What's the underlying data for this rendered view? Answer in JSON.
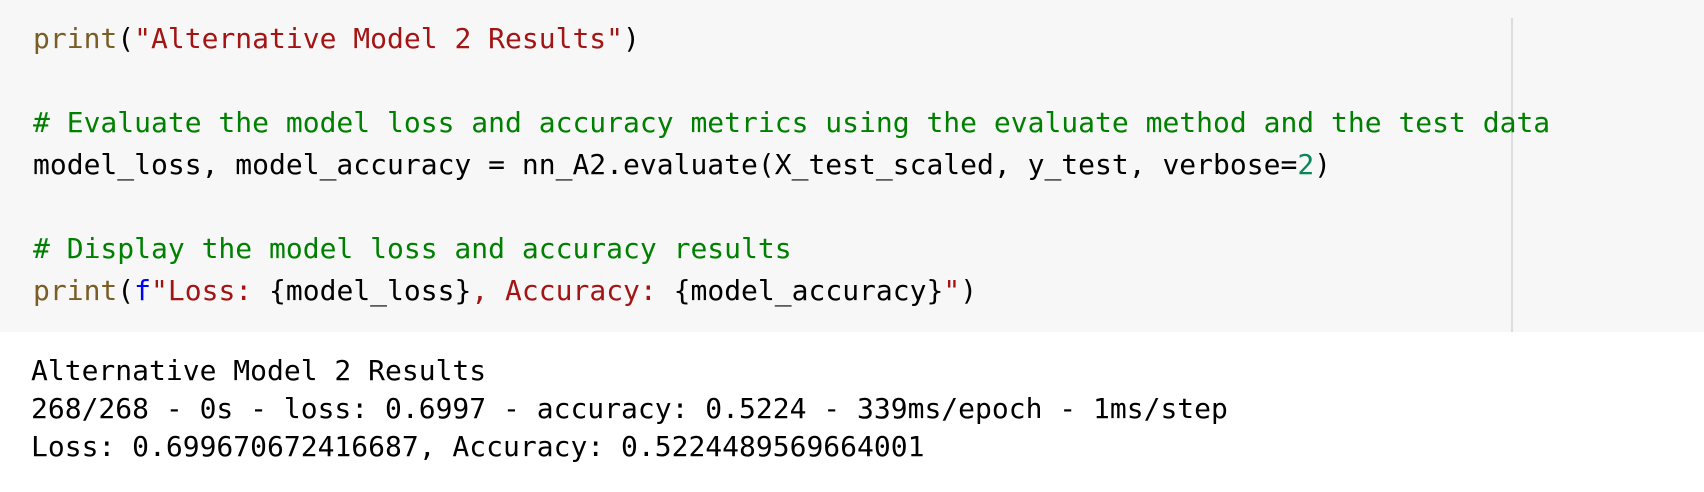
{
  "code_cell": {
    "lines": [
      [
        {
          "t": "fn",
          "v": "print"
        },
        {
          "t": "plain",
          "v": "("
        },
        {
          "t": "str",
          "v": "\"Alternative Model 2 Results\""
        },
        {
          "t": "plain",
          "v": ")"
        }
      ],
      [],
      [
        {
          "t": "cmt",
          "v": "# Evaluate the model loss and accuracy metrics using the evaluate method and the test data"
        }
      ],
      [
        {
          "t": "plain",
          "v": "model_loss, model_accuracy = nn_A2.evaluate(X_test_scaled, y_test, verbose="
        },
        {
          "t": "num",
          "v": "2"
        },
        {
          "t": "plain",
          "v": ")"
        }
      ],
      [],
      [
        {
          "t": "cmt",
          "v": "# Display the model loss and accuracy results"
        }
      ],
      [
        {
          "t": "fn",
          "v": "print"
        },
        {
          "t": "plain",
          "v": "("
        },
        {
          "t": "kw",
          "v": "f"
        },
        {
          "t": "str",
          "v": "\"Loss: "
        },
        {
          "t": "plain",
          "v": "{model_loss}"
        },
        {
          "t": "str",
          "v": ", Accuracy: "
        },
        {
          "t": "plain",
          "v": "{model_accuracy}"
        },
        {
          "t": "str",
          "v": "\""
        },
        {
          "t": "plain",
          "v": ")"
        }
      ]
    ]
  },
  "output_cell": {
    "lines": [
      "Alternative Model 2 Results",
      "268/268 - 0s - loss: 0.6997 - accuracy: 0.5224 - 339ms/epoch - 1ms/step",
      "Loss: 0.699670672416687, Accuracy: 0.5224489569664001"
    ]
  },
  "colors": {
    "function": "#795e26",
    "string": "#a31515",
    "comment": "#008000",
    "number": "#098658",
    "keyword": "#0000ff",
    "code_background": "#f7f7f7"
  }
}
